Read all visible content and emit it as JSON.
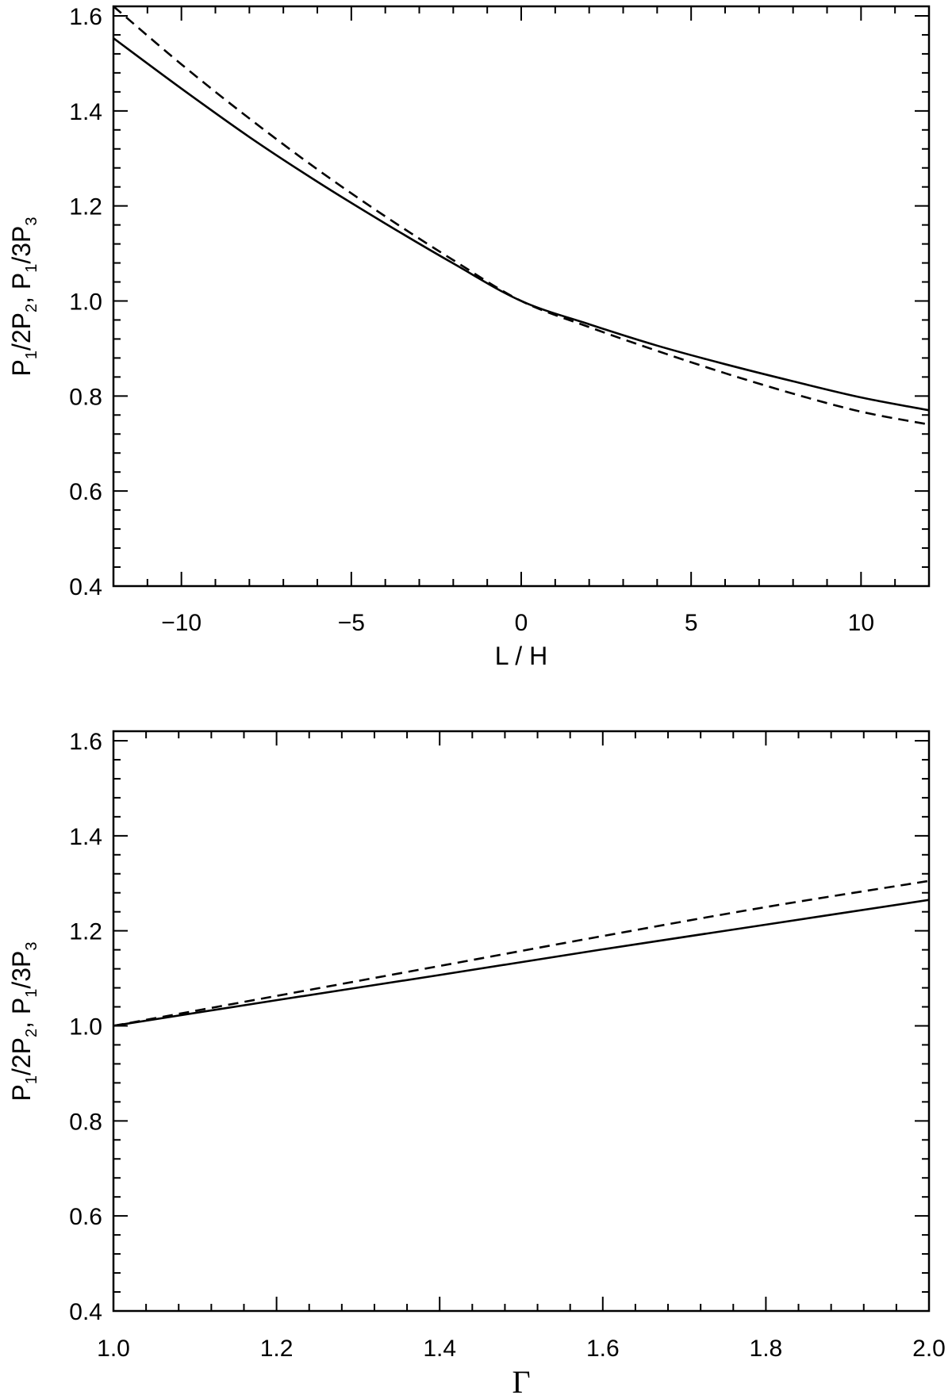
{
  "chart_data": [
    {
      "type": "line",
      "xlabel": "L / H",
      "ylabel": {
        "base": "P",
        "parts": [
          "P",
          "1",
          "/2P",
          "2",
          ",  P",
          "1",
          "/3P",
          "3"
        ]
      },
      "xlim": [
        -12,
        12
      ],
      "ylim": [
        0.4,
        1.62
      ],
      "xticks": [
        -10,
        -5,
        0,
        5,
        10
      ],
      "xtick_labels": [
        "−10",
        "−5",
        "0",
        "5",
        "10"
      ],
      "yticks": [
        0.4,
        0.6,
        0.8,
        1.0,
        1.2,
        1.4,
        1.6
      ],
      "ytick_labels": [
        "0.4",
        "0.6",
        "0.8",
        "1.0",
        "1.2",
        "1.4",
        "1.6"
      ],
      "grid": false,
      "series": [
        {
          "style": "solid",
          "x": [
            -12,
            -10,
            -8,
            -6,
            -4,
            -2,
            0,
            2,
            4,
            6,
            8,
            10,
            12
          ],
          "y": [
            1.553,
            1.447,
            1.345,
            1.251,
            1.163,
            1.079,
            1.0,
            0.951,
            0.906,
            0.867,
            0.831,
            0.797,
            0.77
          ]
        },
        {
          "style": "dashed",
          "x": [
            -12,
            -10,
            -8,
            -6,
            -4,
            -2,
            0,
            2,
            4,
            6,
            8,
            10,
            12
          ],
          "y": [
            1.62,
            1.498,
            1.384,
            1.277,
            1.178,
            1.086,
            1.0,
            0.945,
            0.895,
            0.848,
            0.805,
            0.767,
            0.74
          ]
        }
      ]
    },
    {
      "type": "line",
      "xlabel": "Γ",
      "ylabel": {
        "base": "P",
        "parts": [
          "P",
          "1",
          "/2P",
          "2",
          ",  P",
          "1",
          "/3P",
          "3"
        ]
      },
      "xlim": [
        1.0,
        2.0
      ],
      "ylim": [
        0.4,
        1.62
      ],
      "xticks": [
        1.0,
        1.2,
        1.4,
        1.6,
        1.8,
        2.0
      ],
      "xtick_labels": [
        "1.0",
        "1.2",
        "1.4",
        "1.6",
        "1.8",
        "2.0"
      ],
      "yticks": [
        0.4,
        0.6,
        0.8,
        1.0,
        1.2,
        1.4,
        1.6
      ],
      "ytick_labels": [
        "0.4",
        "0.6",
        "0.8",
        "1.0",
        "1.2",
        "1.4",
        "1.6"
      ],
      "grid": false,
      "series": [
        {
          "style": "solid",
          "x": [
            1.0,
            1.2,
            1.4,
            1.6,
            1.8,
            2.0
          ],
          "y": [
            1.0,
            1.054,
            1.107,
            1.161,
            1.213,
            1.265
          ]
        },
        {
          "style": "dashed",
          "x": [
            1.0,
            1.2,
            1.4,
            1.6,
            1.8,
            2.0
          ],
          "y": [
            1.0,
            1.063,
            1.126,
            1.189,
            1.25,
            1.305
          ]
        }
      ]
    }
  ]
}
